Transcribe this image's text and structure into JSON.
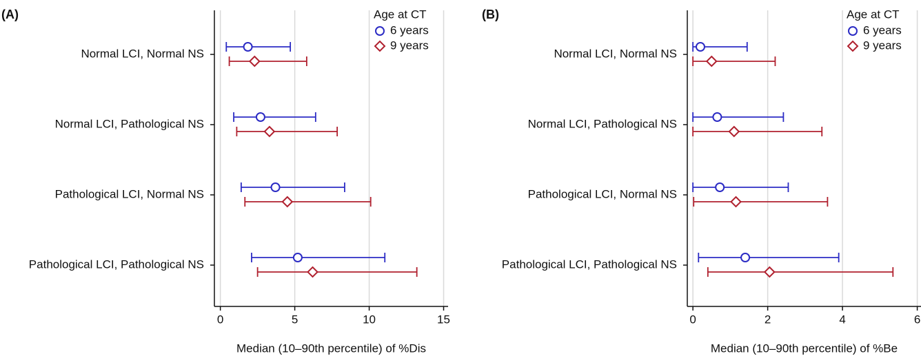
{
  "chart_data": [
    {
      "type": "dot",
      "title": "(A)",
      "xlabel": "Median (10–90th percentile) of %Dis",
      "categories": [
        "Normal LCI, Normal NS",
        "Normal LCI, Pathological NS",
        "Pathological LCI, Normal NS",
        "Pathological LCI, Pathological NS"
      ],
      "legend_title": "Age at CT",
      "legend": "upper right",
      "grid": true,
      "series": [
        {
          "name": "6 years",
          "color": "#2b2bc4",
          "marker": "circle",
          "values": [
            1.85,
            2.7,
            3.7,
            5.2
          ],
          "lower": [
            0.4,
            0.9,
            1.4,
            2.1
          ],
          "upper": [
            4.7,
            6.4,
            8.35,
            11.05
          ]
        },
        {
          "name": "9 years",
          "color": "#b0202e",
          "marker": "diamond",
          "values": [
            2.3,
            3.3,
            4.5,
            6.2
          ],
          "lower": [
            0.6,
            1.1,
            1.65,
            2.5
          ],
          "upper": [
            5.8,
            7.85,
            10.1,
            13.2
          ]
        }
      ],
      "xlim": [
        -0.4,
        15.3
      ],
      "xticks": [
        0,
        5,
        10,
        15
      ]
    },
    {
      "type": "dot",
      "title": "(B)",
      "xlabel": "Median (10–90th percentile) of %Be",
      "categories": [
        "Normal LCI, Normal NS",
        "Normal LCI, Pathological NS",
        "Pathological LCI, Normal NS",
        "Pathological LCI, Pathological NS"
      ],
      "legend_title": "Age at CT",
      "legend": "upper right",
      "grid": true,
      "series": [
        {
          "name": "6 years",
          "color": "#2b2bc4",
          "marker": "circle",
          "values": [
            0.2,
            0.65,
            0.72,
            1.4
          ],
          "lower": [
            0,
            0,
            0,
            0.15
          ],
          "upper": [
            1.45,
            2.42,
            2.55,
            3.9
          ]
        },
        {
          "name": "9 years",
          "color": "#b0202e",
          "marker": "diamond",
          "values": [
            0.5,
            1.1,
            1.15,
            2.05
          ],
          "lower": [
            0,
            0,
            0.02,
            0.4
          ],
          "upper": [
            2.2,
            3.45,
            3.6,
            5.35
          ]
        }
      ],
      "xlim": [
        -0.15,
        6.1
      ],
      "xticks": [
        0,
        2,
        4,
        6
      ]
    }
  ]
}
